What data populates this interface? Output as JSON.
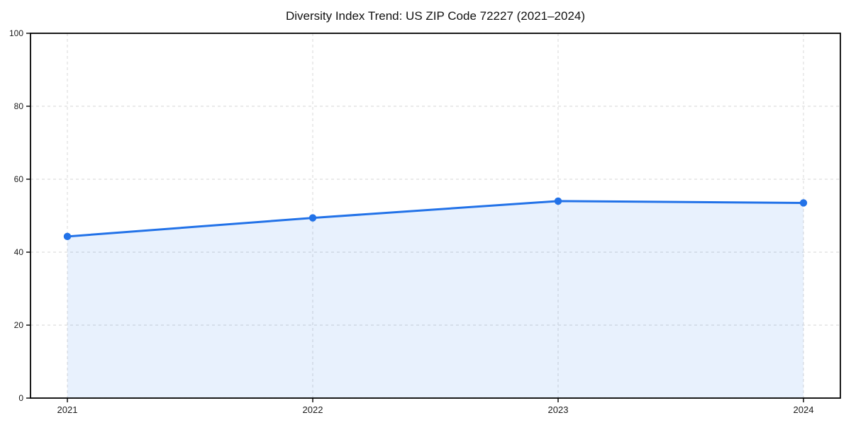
{
  "chart_data": {
    "type": "area",
    "title": "Diversity Index Trend: US ZIP Code 72227 (2021–2024)",
    "xlabel": "",
    "ylabel": "",
    "categories": [
      "2021",
      "2022",
      "2023",
      "2024"
    ],
    "series": [
      {
        "name": "Diversity Index",
        "values": [
          44.3,
          49.4,
          54.0,
          53.5
        ]
      }
    ],
    "ylim": [
      0,
      100
    ],
    "yticks": [
      0,
      20,
      40,
      60,
      80,
      100
    ],
    "grid": "dashed, both axes",
    "legend": "none",
    "frame": "full box",
    "colors": {
      "line": "#2272e8",
      "marker": "#2272e8",
      "fill": "#2272e8",
      "fill_opacity": 0.1,
      "grid": "#dedede",
      "spine": "#000000",
      "tick_text": "#1a1a1a",
      "background": "#ffffff"
    }
  }
}
